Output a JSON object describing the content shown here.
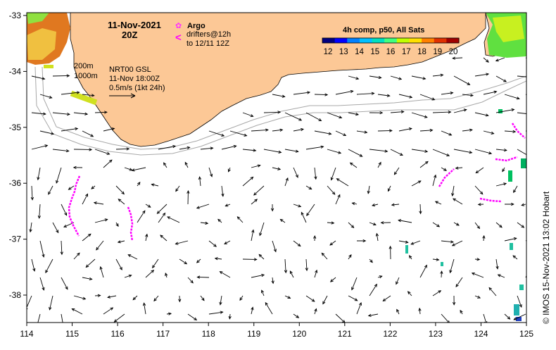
{
  "header": {
    "date": "11-Nov-2021",
    "hour": "20Z"
  },
  "legend": {
    "argo_label": "Argo",
    "drifters_line1": "drifters@12h",
    "drifters_line2": "to 12/11 12Z",
    "argo_color": "#ff33ff",
    "drifter_color": "#ff00ff"
  },
  "contours_note": {
    "depth1": "200m",
    "depth2": "1000m"
  },
  "product": {
    "line1": "NRT00 GSL",
    "line2": "11-Nov 18:00Z",
    "line3": "0.5m/s (1kt 24h)"
  },
  "colorbar": {
    "title": "4h comp, p50, All Sats",
    "ticks": [
      "12",
      "13",
      "14",
      "15",
      "16",
      "17",
      "18",
      "19",
      "20"
    ],
    "colors": [
      "#000080",
      "#0000ff",
      "#0080ff",
      "#00c0ff",
      "#00e0c0",
      "#40ff80",
      "#c0ff00",
      "#ffe000",
      "#ff8000",
      "#e03000",
      "#a00000"
    ]
  },
  "credit": "© IMOS 15-Nov-2021 13:02 Hobart",
  "axes": {
    "x_ticks": [
      "114",
      "115",
      "116",
      "117",
      "118",
      "119",
      "120",
      "121",
      "122",
      "123",
      "124",
      "125"
    ],
    "y_ticks": [
      "-33",
      "-34",
      "-35",
      "-36",
      "-37",
      "-38"
    ]
  },
  "colors": {
    "land": "#fcc896",
    "sea": "#ffffff",
    "arrow": "#000000"
  }
}
